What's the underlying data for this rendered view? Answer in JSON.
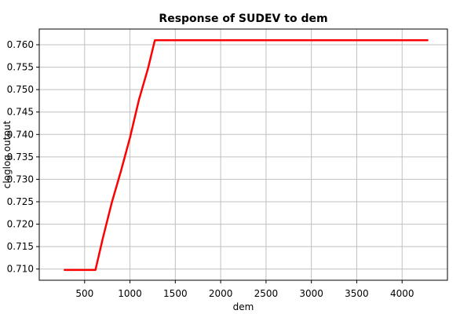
{
  "chart_data": {
    "type": "line",
    "title": "Response of SUDEV to dem",
    "xlabel": "dem",
    "ylabel": "cloglog output",
    "xlim": [
      0,
      4500
    ],
    "ylim": [
      0.7075,
      0.7635
    ],
    "xticks": [
      500,
      1000,
      1500,
      2000,
      2500,
      3000,
      3500,
      4000
    ],
    "yticks": [
      0.71,
      0.715,
      0.72,
      0.725,
      0.73,
      0.735,
      0.74,
      0.745,
      0.75,
      0.755,
      0.76
    ],
    "xtick_labels": [
      "500",
      "1000",
      "1500",
      "2000",
      "2500",
      "3000",
      "3500",
      "4000"
    ],
    "ytick_labels": [
      "0.710",
      "0.715",
      "0.720",
      "0.725",
      "0.730",
      "0.735",
      "0.740",
      "0.745",
      "0.750",
      "0.755",
      "0.760"
    ],
    "grid": true,
    "series": [
      {
        "color": "#ff0000",
        "x": [
          280,
          460,
          620,
          700,
          800,
          900,
          1000,
          1100,
          1200,
          1260,
          1275,
          1500,
          2000,
          2500,
          3000,
          3500,
          4000,
          4280
        ],
        "y": [
          0.7098,
          0.7098,
          0.7098,
          0.7168,
          0.7248,
          0.7318,
          0.7393,
          0.7478,
          0.7548,
          0.7598,
          0.761,
          0.761,
          0.761,
          0.761,
          0.761,
          0.761,
          0.761,
          0.761
        ]
      }
    ]
  }
}
